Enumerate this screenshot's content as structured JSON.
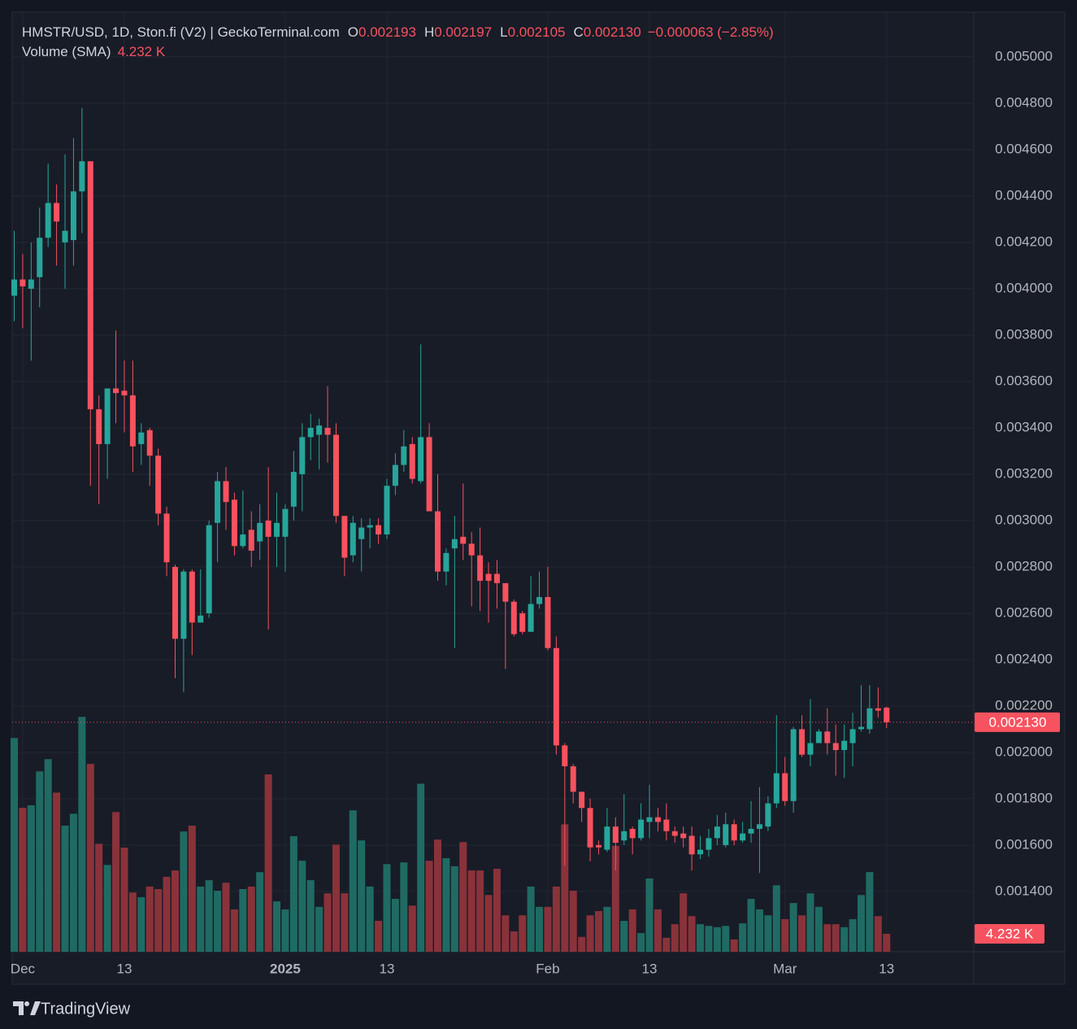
{
  "chart_data": {
    "type": "candlestick",
    "title": "HMSTR/USD, 1D, Ston.fi (V2) | GeckoTerminal.com",
    "ohlc_legend": [
      {
        "key": "O",
        "value": "0.002193"
      },
      {
        "key": "H",
        "value": "0.002197"
      },
      {
        "key": "L",
        "value": "0.002105"
      },
      {
        "key": "C",
        "value": "0.002130"
      }
    ],
    "change": "−0.000063 (−2.85%)",
    "categories": [
      null,
      "Dec",
      null,
      null,
      null,
      null,
      null,
      null,
      null,
      null,
      null,
      null,
      null,
      "13",
      null,
      null,
      null,
      null,
      null,
      null,
      null,
      null,
      null,
      null,
      null,
      null,
      null,
      null,
      null,
      null,
      null,
      null,
      "2025",
      null,
      null,
      null,
      null,
      null,
      null,
      null,
      null,
      null,
      null,
      null,
      "13",
      null,
      null,
      null,
      null,
      null,
      null,
      null,
      null,
      null,
      null,
      null,
      null,
      null,
      null,
      null,
      null,
      null,
      null,
      "Feb",
      null,
      null,
      null,
      null,
      null,
      null,
      null,
      null,
      null,
      null,
      null,
      "13",
      null,
      null,
      null,
      null,
      null,
      null,
      null,
      null,
      null,
      null,
      null,
      null,
      null,
      null,
      null,
      "Mar",
      null,
      null,
      null,
      null,
      null,
      null,
      null,
      null,
      null,
      null,
      null,
      "13"
    ],
    "open": [
      0.00397,
      0.00404,
      0.004,
      0.00405,
      0.00422,
      0.00437,
      0.0042,
      0.00421,
      0.00442,
      0.00455,
      0.00348,
      0.00333,
      0.00357,
      0.00356,
      0.00354,
      0.00333,
      0.00339,
      0.00328,
      0.00303,
      0.0028,
      0.00249,
      0.00278,
      0.00256,
      0.0026,
      0.00299,
      0.00317,
      0.00309,
      0.00289,
      0.00296,
      0.00291,
      0.003,
      0.00293,
      0.00293,
      0.00306,
      0.0032,
      0.00336,
      0.00337,
      0.0034,
      0.00337,
      0.00302,
      0.00285,
      0.00292,
      0.00297,
      0.00298,
      0.00294,
      0.00315,
      0.00324,
      0.00333,
      0.00317,
      0.00336,
      0.00304,
      0.00278,
      0.00288,
      0.00293,
      0.0029,
      0.00285,
      0.00277,
      0.00277,
      0.00273,
      0.00265,
      0.0026,
      0.00252,
      0.00264,
      0.00267,
      0.00245,
      0.00203,
      0.00194,
      0.00183,
      0.00176,
      0.0016,
      0.00158,
      0.00168,
      0.00162,
      0.00167,
      0.00163,
      0.0017,
      0.00172,
      0.00171,
      0.00166,
      0.00165,
      0.00164,
      0.00156,
      0.00158,
      0.00163,
      0.0016,
      0.00169,
      0.00162,
      0.00165,
      0.00167,
      0.00168,
      0.00178,
      0.00191,
      0.00179,
      0.0021,
      0.00199,
      0.00204,
      0.00209,
      0.00204,
      0.00201,
      0.00204,
      0.0021,
      0.0021,
      0.00219,
      0.002193
    ],
    "high": [
      0.00425,
      0.00415,
      0.0042,
      0.00435,
      0.00454,
      0.00445,
      0.00458,
      0.00465,
      0.00478,
      0.00455,
      0.00354,
      0.00357,
      0.00382,
      0.00369,
      0.00369,
      0.00342,
      0.0034,
      0.00331,
      0.00306,
      0.00281,
      0.00279,
      0.00279,
      0.00279,
      0.003,
      0.00321,
      0.00323,
      0.00312,
      0.00313,
      0.00304,
      0.00307,
      0.00323,
      0.00312,
      0.00307,
      0.0033,
      0.00342,
      0.00346,
      0.00344,
      0.00358,
      0.00342,
      0.00302,
      0.00302,
      0.00301,
      0.00301,
      0.00301,
      0.00318,
      0.00329,
      0.00339,
      0.00336,
      0.00376,
      0.00342,
      0.0032,
      0.00288,
      0.00302,
      0.00316,
      0.00295,
      0.00297,
      0.00282,
      0.00283,
      0.00273,
      0.00266,
      0.00261,
      0.00276,
      0.00278,
      0.0028,
      0.0025,
      0.00204,
      0.00195,
      0.00183,
      0.0018,
      0.00162,
      0.00176,
      0.00172,
      0.00182,
      0.00168,
      0.00178,
      0.00186,
      0.00176,
      0.00178,
      0.00168,
      0.00168,
      0.00168,
      0.00164,
      0.00167,
      0.00173,
      0.00174,
      0.00171,
      0.0017,
      0.00179,
      0.00185,
      0.00181,
      0.00216,
      0.00198,
      0.00211,
      0.00216,
      0.00223,
      0.0021,
      0.00219,
      0.00212,
      0.00212,
      0.00217,
      0.00229,
      0.00229,
      0.00228,
      0.002197
    ],
    "low": [
      0.00386,
      0.00383,
      0.00369,
      0.00392,
      0.00418,
      0.0041,
      0.004,
      0.0041,
      0.00424,
      0.00315,
      0.00307,
      0.00318,
      0.00342,
      0.00338,
      0.00321,
      0.00324,
      0.00315,
      0.00298,
      0.00276,
      0.00232,
      0.00226,
      0.00242,
      0.00256,
      0.00258,
      0.00282,
      0.00296,
      0.00285,
      0.00288,
      0.0028,
      0.00283,
      0.00253,
      0.0028,
      0.00278,
      0.003,
      0.00304,
      0.00326,
      0.00322,
      0.00325,
      0.00299,
      0.00276,
      0.00282,
      0.00278,
      0.00288,
      0.0029,
      0.00292,
      0.00311,
      0.00321,
      0.00316,
      0.00316,
      0.00304,
      0.00274,
      0.00272,
      0.00245,
      0.00283,
      0.00263,
      0.00261,
      0.00256,
      0.00262,
      0.00236,
      0.0025,
      0.00251,
      0.00252,
      0.00262,
      0.00244,
      0.00199,
      0.00151,
      0.00178,
      0.0017,
      0.00153,
      0.00156,
      0.00157,
      0.00149,
      0.0016,
      0.00156,
      0.00162,
      0.00163,
      0.00166,
      0.00162,
      0.00161,
      0.00159,
      0.00149,
      0.00154,
      0.00155,
      0.0016,
      0.00159,
      0.0016,
      0.00161,
      0.00161,
      0.00148,
      0.00166,
      0.00176,
      0.00177,
      0.00174,
      0.00198,
      0.00194,
      0.00204,
      0.00199,
      0.0019,
      0.00189,
      0.00194,
      0.00209,
      0.00208,
      0.00215,
      0.002105
    ],
    "close": [
      0.00404,
      0.00401,
      0.00404,
      0.00422,
      0.00437,
      0.00429,
      0.00425,
      0.00442,
      0.00455,
      0.00348,
      0.00333,
      0.00357,
      0.00355,
      0.00354,
      0.00332,
      0.00338,
      0.00328,
      0.00303,
      0.00282,
      0.00249,
      0.00278,
      0.00256,
      0.00259,
      0.00298,
      0.00317,
      0.00308,
      0.00289,
      0.00294,
      0.00287,
      0.00299,
      0.00293,
      0.00299,
      0.00305,
      0.00321,
      0.00336,
      0.0034,
      0.00341,
      0.00337,
      0.00302,
      0.00284,
      0.00299,
      0.00297,
      0.00298,
      0.00294,
      0.00315,
      0.00324,
      0.00332,
      0.00318,
      0.00336,
      0.00304,
      0.00278,
      0.00286,
      0.00292,
      0.0029,
      0.00285,
      0.00274,
      0.00274,
      0.00273,
      0.00265,
      0.00251,
      0.00252,
      0.00264,
      0.00267,
      0.00245,
      0.00203,
      0.00194,
      0.00183,
      0.00176,
      0.00159,
      0.00159,
      0.00168,
      0.00161,
      0.00166,
      0.00163,
      0.00171,
      0.00172,
      0.0017,
      0.00166,
      0.00164,
      0.00163,
      0.00156,
      0.00158,
      0.00163,
      0.00168,
      0.00169,
      0.00162,
      0.00165,
      0.00167,
      0.00169,
      0.00178,
      0.00191,
      0.00179,
      0.0021,
      0.00199,
      0.00204,
      0.00209,
      0.00204,
      0.00201,
      0.00205,
      0.0021,
      0.00211,
      0.00219,
      0.00218,
      0.00213
    ],
    "volume": {
      "name": "Volume (SMA)",
      "last_label": "4.232 K",
      "up_color": "#1f6b63",
      "down_color": "#8a323a",
      "values": [
        50500,
        34000,
        34600,
        42600,
        45500,
        37600,
        29800,
        32600,
        55500,
        44400,
        25500,
        20500,
        33000,
        24600,
        14000,
        12900,
        15400,
        14800,
        17700,
        19200,
        28400,
        29800,
        15400,
        16900,
        14400,
        16300,
        10000,
        14800,
        15400,
        18800,
        41900,
        11900,
        10000,
        27300,
        21500,
        16900,
        10600,
        13800,
        25300,
        13800,
        33400,
        26300,
        15400,
        7300,
        20700,
        12500,
        21100,
        10900,
        39700,
        21500,
        26500,
        22100,
        20200,
        25900,
        19200,
        19200,
        13400,
        19600,
        8600,
        4800,
        8600,
        15400,
        10600,
        10600,
        15400,
        30100,
        14400,
        3500,
        8600,
        9600,
        10600,
        25000,
        7300,
        10000,
        4400,
        17300,
        10000,
        3300,
        6500,
        13800,
        8400,
        6500,
        6100,
        5800,
        6100,
        2900,
        6700,
        12500,
        10000,
        8600,
        15700,
        7700,
        11500,
        8600,
        13800,
        10600,
        6500,
        6500,
        5800,
        7700,
        13400,
        18800,
        8400,
        4232
      ]
    },
    "up_color": "#26a69a",
    "down_color": "#f7525f",
    "last_price": {
      "value": 0.00213,
      "label": "0.002130"
    },
    "ylim": [
      0.00114,
      0.005193
    ],
    "yticks": [
      {
        "value": 0.0014,
        "label": "0.001400"
      },
      {
        "value": 0.0016,
        "label": "0.001600"
      },
      {
        "value": 0.0018,
        "label": "0.001800"
      },
      {
        "value": 0.002,
        "label": "0.002000"
      },
      {
        "value": 0.0022,
        "label": "0.002200"
      },
      {
        "value": 0.0024,
        "label": "0.002400"
      },
      {
        "value": 0.0026,
        "label": "0.002600"
      },
      {
        "value": 0.0028,
        "label": "0.002800"
      },
      {
        "value": 0.003,
        "label": "0.003000"
      },
      {
        "value": 0.0032,
        "label": "0.003200"
      },
      {
        "value": 0.0034,
        "label": "0.003400"
      },
      {
        "value": 0.0036,
        "label": "0.003600"
      },
      {
        "value": 0.0038,
        "label": "0.003800"
      },
      {
        "value": 0.004,
        "label": "0.004000"
      },
      {
        "value": 0.0042,
        "label": "0.004200"
      },
      {
        "value": 0.0044,
        "label": "0.004400"
      },
      {
        "value": 0.0046,
        "label": "0.004600"
      },
      {
        "value": 0.0048,
        "label": "0.004800"
      },
      {
        "value": 0.005,
        "label": "0.005000"
      }
    ],
    "grid": true
  },
  "branding": "TradingView"
}
